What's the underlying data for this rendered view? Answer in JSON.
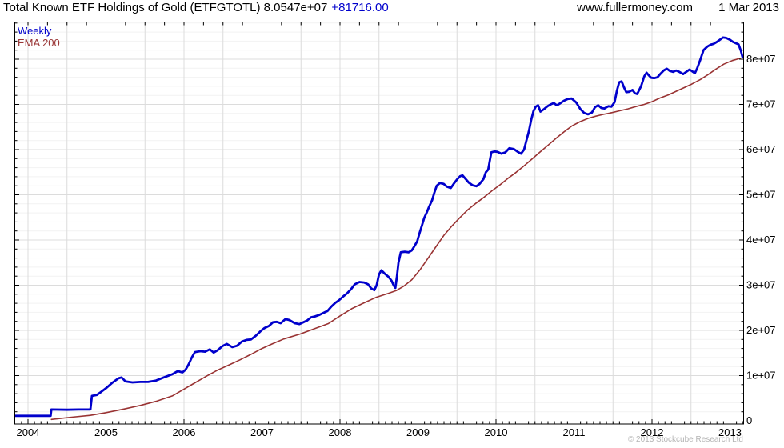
{
  "header": {
    "title_main": "Total Known ETF Holdings of Gold (ETFGTOTL) 8.0547e+07",
    "title_change": "+81716.00",
    "site": "www.fullermoney.com",
    "date": "1 Mar 2013"
  },
  "legend": {
    "series1": "Weekly",
    "series2": "EMA 200"
  },
  "footer": {
    "copyright": "© 2013 Stockcube Research Ltd"
  },
  "colors": {
    "price": "#0000cc",
    "ema": "#993333",
    "grid_minor": "#f2f2f2",
    "grid_major": "#dcdcdc",
    "axis": "#000000",
    "muted": "#b4b4b4",
    "background": "#ffffff"
  },
  "chart_data": {
    "type": "line",
    "title": "Total Known ETF Holdings of Gold (ETFGTOTL)",
    "timeframe": "Weekly",
    "last_value": 80547000,
    "last_change": "+81716.00",
    "values_unit_multiplier": 1000000,
    "legend_position": "top-left",
    "grid": true,
    "x_axis": {
      "range": [
        2003.83,
        2013.17
      ],
      "tick_labels": [
        "2004",
        "2005",
        "2006",
        "2007",
        "2008",
        "2009",
        "2010",
        "2011",
        "2012",
        "2013"
      ]
    },
    "y_axis": {
      "range": [
        0,
        88300000
      ],
      "tick_labels": [
        "0",
        "1e+07",
        "2e+07",
        "3e+07",
        "4e+07",
        "5e+07",
        "6e+07",
        "7e+07",
        "8e+07"
      ]
    },
    "series": [
      {
        "name": "Weekly",
        "color": "#0000cc",
        "points": [
          [
            2003.83,
            1.1
          ],
          [
            2004.1,
            1.1
          ],
          [
            2004.29,
            1.1
          ],
          [
            2004.3,
            2.5
          ],
          [
            2004.5,
            2.45
          ],
          [
            2004.65,
            2.5
          ],
          [
            2004.8,
            2.5
          ],
          [
            2004.82,
            5.5
          ],
          [
            2004.88,
            5.7
          ],
          [
            2004.93,
            6.3
          ],
          [
            2005.0,
            7.2
          ],
          [
            2005.08,
            8.4
          ],
          [
            2005.16,
            9.4
          ],
          [
            2005.2,
            9.6
          ],
          [
            2005.25,
            8.7
          ],
          [
            2005.34,
            8.5
          ],
          [
            2005.44,
            8.6
          ],
          [
            2005.54,
            8.6
          ],
          [
            2005.64,
            8.9
          ],
          [
            2005.74,
            9.6
          ],
          [
            2005.85,
            10.3
          ],
          [
            2005.92,
            11.0
          ],
          [
            2005.98,
            10.7
          ],
          [
            2006.02,
            11.3
          ],
          [
            2006.06,
            12.5
          ],
          [
            2006.1,
            14.0
          ],
          [
            2006.14,
            15.2
          ],
          [
            2006.21,
            15.4
          ],
          [
            2006.27,
            15.3
          ],
          [
            2006.33,
            15.8
          ],
          [
            2006.38,
            15.1
          ],
          [
            2006.43,
            15.6
          ],
          [
            2006.49,
            16.5
          ],
          [
            2006.55,
            17.0
          ],
          [
            2006.62,
            16.3
          ],
          [
            2006.68,
            16.6
          ],
          [
            2006.74,
            17.5
          ],
          [
            2006.8,
            17.9
          ],
          [
            2006.86,
            18.0
          ],
          [
            2006.92,
            18.8
          ],
          [
            2006.98,
            19.8
          ],
          [
            2007.03,
            20.5
          ],
          [
            2007.09,
            21.0
          ],
          [
            2007.14,
            21.8
          ],
          [
            2007.19,
            21.9
          ],
          [
            2007.24,
            21.6
          ],
          [
            2007.3,
            22.5
          ],
          [
            2007.35,
            22.3
          ],
          [
            2007.42,
            21.6
          ],
          [
            2007.48,
            21.4
          ],
          [
            2007.53,
            21.8
          ],
          [
            2007.58,
            22.2
          ],
          [
            2007.63,
            22.9
          ],
          [
            2007.68,
            23.1
          ],
          [
            2007.73,
            23.4
          ],
          [
            2007.78,
            23.8
          ],
          [
            2007.84,
            24.3
          ],
          [
            2007.89,
            25.3
          ],
          [
            2007.94,
            26.1
          ],
          [
            2007.99,
            26.7
          ],
          [
            2008.04,
            27.5
          ],
          [
            2008.09,
            28.2
          ],
          [
            2008.14,
            29.1
          ],
          [
            2008.19,
            30.2
          ],
          [
            2008.25,
            30.7
          ],
          [
            2008.31,
            30.6
          ],
          [
            2008.36,
            30.2
          ],
          [
            2008.4,
            29.3
          ],
          [
            2008.44,
            28.9
          ],
          [
            2008.47,
            30.0
          ],
          [
            2008.5,
            32.4
          ],
          [
            2008.53,
            33.3
          ],
          [
            2008.57,
            32.6
          ],
          [
            2008.62,
            31.9
          ],
          [
            2008.66,
            31.0
          ],
          [
            2008.69,
            29.9
          ],
          [
            2008.71,
            29.4
          ],
          [
            2008.73,
            32.0
          ],
          [
            2008.75,
            35.0
          ],
          [
            2008.78,
            37.3
          ],
          [
            2008.83,
            37.4
          ],
          [
            2008.88,
            37.3
          ],
          [
            2008.92,
            37.7
          ],
          [
            2008.95,
            38.5
          ],
          [
            2008.99,
            39.7
          ],
          [
            2009.02,
            41.5
          ],
          [
            2009.05,
            43.2
          ],
          [
            2009.08,
            44.9
          ],
          [
            2009.11,
            46.0
          ],
          [
            2009.14,
            47.3
          ],
          [
            2009.18,
            48.8
          ],
          [
            2009.21,
            50.5
          ],
          [
            2009.24,
            52.0
          ],
          [
            2009.28,
            52.6
          ],
          [
            2009.33,
            52.4
          ],
          [
            2009.37,
            51.8
          ],
          [
            2009.42,
            51.5
          ],
          [
            2009.46,
            52.5
          ],
          [
            2009.5,
            53.4
          ],
          [
            2009.54,
            54.1
          ],
          [
            2009.57,
            54.3
          ],
          [
            2009.61,
            53.5
          ],
          [
            2009.65,
            52.7
          ],
          [
            2009.7,
            52.1
          ],
          [
            2009.75,
            51.9
          ],
          [
            2009.79,
            52.4
          ],
          [
            2009.84,
            53.5
          ],
          [
            2009.87,
            55.0
          ],
          [
            2009.9,
            55.6
          ],
          [
            2009.92,
            57.5
          ],
          [
            2009.94,
            59.4
          ],
          [
            2009.98,
            59.6
          ],
          [
            2010.02,
            59.5
          ],
          [
            2010.07,
            59.1
          ],
          [
            2010.12,
            59.4
          ],
          [
            2010.17,
            60.3
          ],
          [
            2010.23,
            60.1
          ],
          [
            2010.28,
            59.5
          ],
          [
            2010.32,
            59.1
          ],
          [
            2010.36,
            60.0
          ],
          [
            2010.39,
            62.0
          ],
          [
            2010.42,
            64.0
          ],
          [
            2010.45,
            66.5
          ],
          [
            2010.48,
            68.5
          ],
          [
            2010.51,
            69.5
          ],
          [
            2010.54,
            69.8
          ],
          [
            2010.57,
            68.4
          ],
          [
            2010.62,
            69.0
          ],
          [
            2010.66,
            69.6
          ],
          [
            2010.7,
            70.0
          ],
          [
            2010.74,
            70.3
          ],
          [
            2010.78,
            69.8
          ],
          [
            2010.82,
            70.2
          ],
          [
            2010.87,
            70.8
          ],
          [
            2010.92,
            71.2
          ],
          [
            2010.97,
            71.3
          ],
          [
            2011.03,
            70.4
          ],
          [
            2011.08,
            69.0
          ],
          [
            2011.13,
            68.1
          ],
          [
            2011.18,
            67.8
          ],
          [
            2011.23,
            68.2
          ],
          [
            2011.27,
            69.4
          ],
          [
            2011.31,
            69.8
          ],
          [
            2011.35,
            69.2
          ],
          [
            2011.39,
            69.1
          ],
          [
            2011.44,
            69.6
          ],
          [
            2011.48,
            69.5
          ],
          [
            2011.52,
            70.5
          ],
          [
            2011.55,
            73.0
          ],
          [
            2011.58,
            74.9
          ],
          [
            2011.61,
            75.1
          ],
          [
            2011.64,
            73.8
          ],
          [
            2011.67,
            72.7
          ],
          [
            2011.71,
            72.8
          ],
          [
            2011.75,
            73.2
          ],
          [
            2011.78,
            72.5
          ],
          [
            2011.81,
            72.3
          ],
          [
            2011.86,
            74.0
          ],
          [
            2011.9,
            76.2
          ],
          [
            2011.93,
            77.0
          ],
          [
            2011.96,
            76.4
          ],
          [
            2011.99,
            75.9
          ],
          [
            2012.03,
            75.8
          ],
          [
            2012.07,
            76.0
          ],
          [
            2012.11,
            76.8
          ],
          [
            2012.15,
            77.5
          ],
          [
            2012.19,
            77.9
          ],
          [
            2012.23,
            77.4
          ],
          [
            2012.27,
            77.2
          ],
          [
            2012.31,
            77.5
          ],
          [
            2012.35,
            77.2
          ],
          [
            2012.4,
            76.7
          ],
          [
            2012.44,
            77.2
          ],
          [
            2012.48,
            77.7
          ],
          [
            2012.51,
            77.4
          ],
          [
            2012.55,
            76.9
          ],
          [
            2012.58,
            78.0
          ],
          [
            2012.62,
            79.9
          ],
          [
            2012.66,
            82.0
          ],
          [
            2012.71,
            82.8
          ],
          [
            2012.75,
            83.2
          ],
          [
            2012.79,
            83.4
          ],
          [
            2012.83,
            83.8
          ],
          [
            2012.87,
            84.3
          ],
          [
            2012.91,
            84.8
          ],
          [
            2012.95,
            84.7
          ],
          [
            2013.0,
            84.3
          ],
          [
            2013.04,
            83.8
          ],
          [
            2013.08,
            83.5
          ],
          [
            2013.11,
            83.3
          ],
          [
            2013.14,
            81.8
          ],
          [
            2013.16,
            80.5
          ]
        ]
      },
      {
        "name": "EMA 200",
        "color": "#993333",
        "points": [
          [
            2004.3,
            0.3
          ],
          [
            2004.56,
            0.8
          ],
          [
            2004.8,
            1.2
          ],
          [
            2005.0,
            1.8
          ],
          [
            2005.23,
            2.6
          ],
          [
            2005.44,
            3.4
          ],
          [
            2005.64,
            4.3
          ],
          [
            2005.85,
            5.5
          ],
          [
            2006.0,
            7.0
          ],
          [
            2006.14,
            8.4
          ],
          [
            2006.29,
            9.9
          ],
          [
            2006.43,
            11.2
          ],
          [
            2006.57,
            12.3
          ],
          [
            2006.72,
            13.5
          ],
          [
            2006.86,
            14.7
          ],
          [
            2007.0,
            16.0
          ],
          [
            2007.13,
            17.0
          ],
          [
            2007.28,
            18.1
          ],
          [
            2007.49,
            19.2
          ],
          [
            2007.69,
            20.5
          ],
          [
            2007.85,
            21.5
          ],
          [
            2008.0,
            23.2
          ],
          [
            2008.15,
            24.8
          ],
          [
            2008.31,
            26.1
          ],
          [
            2008.46,
            27.3
          ],
          [
            2008.62,
            28.2
          ],
          [
            2008.72,
            28.8
          ],
          [
            2008.82,
            29.8
          ],
          [
            2008.92,
            31.2
          ],
          [
            2009.03,
            33.5
          ],
          [
            2009.13,
            36.0
          ],
          [
            2009.23,
            38.5
          ],
          [
            2009.33,
            41.0
          ],
          [
            2009.44,
            43.2
          ],
          [
            2009.54,
            45.0
          ],
          [
            2009.64,
            46.7
          ],
          [
            2009.74,
            48.1
          ],
          [
            2009.85,
            49.5
          ],
          [
            2009.95,
            50.9
          ],
          [
            2010.05,
            52.2
          ],
          [
            2010.15,
            53.6
          ],
          [
            2010.26,
            55.0
          ],
          [
            2010.36,
            56.4
          ],
          [
            2010.46,
            57.9
          ],
          [
            2010.56,
            59.4
          ],
          [
            2010.67,
            61.0
          ],
          [
            2010.77,
            62.5
          ],
          [
            2010.87,
            63.9
          ],
          [
            2010.97,
            65.2
          ],
          [
            2011.08,
            66.2
          ],
          [
            2011.18,
            66.9
          ],
          [
            2011.28,
            67.4
          ],
          [
            2011.38,
            67.8
          ],
          [
            2011.49,
            68.2
          ],
          [
            2011.59,
            68.6
          ],
          [
            2011.69,
            69.0
          ],
          [
            2011.79,
            69.5
          ],
          [
            2011.9,
            70.0
          ],
          [
            2012.0,
            70.6
          ],
          [
            2012.1,
            71.4
          ],
          [
            2012.21,
            72.1
          ],
          [
            2012.31,
            72.9
          ],
          [
            2012.41,
            73.7
          ],
          [
            2012.51,
            74.5
          ],
          [
            2012.62,
            75.5
          ],
          [
            2012.72,
            76.6
          ],
          [
            2012.82,
            77.8
          ],
          [
            2012.92,
            78.9
          ],
          [
            2013.03,
            79.7
          ],
          [
            2013.13,
            80.2
          ]
        ]
      }
    ]
  }
}
